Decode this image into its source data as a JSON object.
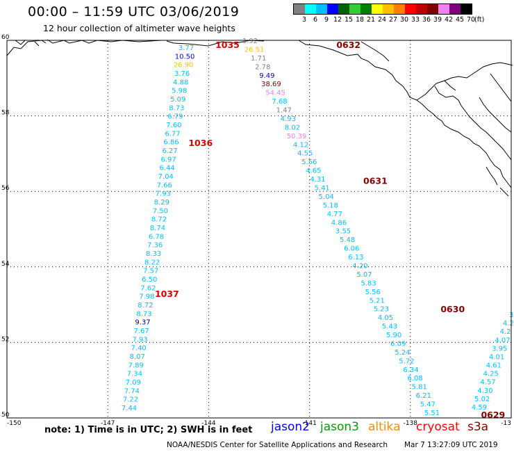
{
  "header": {
    "title": "00:00 – 11:59 UTC 03/06/2019",
    "subtitle": "12 hour collection of altimeter wave heights"
  },
  "legend": {
    "colors": [
      "#808080",
      "#00ffff",
      "#00bfff",
      "#0000ff",
      "#006400",
      "#32cd32",
      "#008000",
      "#ffff00",
      "#ffc000",
      "#ff8000",
      "#ff0000",
      "#c00000",
      "#800000",
      "#ee82ee",
      "#800080",
      "#000000"
    ],
    "labels": [
      "3",
      "6",
      "9",
      "12",
      "15",
      "18",
      "21",
      "24",
      "27",
      "30",
      "33",
      "36",
      "39",
      "42",
      "45",
      "70"
    ],
    "unit": "(ft)"
  },
  "axes": {
    "lat_labels": [
      "60",
      "58",
      "56",
      "54",
      "52",
      "50"
    ],
    "lon_labels": [
      "-150",
      "-147",
      "-144",
      "-141",
      "-138",
      "-13"
    ]
  },
  "passes": [
    {
      "id": "1035",
      "color": "#e00000",
      "lat": 59.8,
      "lon": -143.8
    },
    {
      "id": "1036",
      "color": "#e00000",
      "lat": 57.2,
      "lon": -144.6
    },
    {
      "id": "1037",
      "color": "#e00000",
      "lat": 53.2,
      "lon": -145.6
    },
    {
      "id": "0632",
      "color": "#8b0000",
      "lat": 59.8,
      "lon": -140.2
    },
    {
      "id": "0631",
      "color": "#8b0000",
      "lat": 56.2,
      "lon": -139.4
    },
    {
      "id": "0630",
      "color": "#8b0000",
      "lat": 52.8,
      "lon": -137.1
    },
    {
      "id": "0629",
      "color": "#8b0000",
      "lat": 50.0,
      "lon": -135.9
    }
  ],
  "tracks": [
    {
      "values": [
        "3.77",
        "10.50",
        "26.90",
        "3.76",
        "4.88",
        "5.98",
        "5.09",
        "8.73",
        "6.79",
        "7.60",
        "6.77",
        "6.86",
        "6.27",
        "6.97",
        "6.44",
        "7.04",
        "7.66",
        "7.93",
        "8.29",
        "7.50",
        "8.72",
        "8.74",
        "6.78",
        "7.36",
        "8.33",
        "8.22",
        "7.57",
        "6.50",
        "7.62",
        "7.98",
        "8.72",
        "8.73",
        "9.37",
        "7.67",
        "7.93",
        "7.40",
        "8.07",
        "7.89",
        "7.34",
        "7.09",
        "7.74",
        "7.22",
        "7.44"
      ],
      "colors": [
        "#00bfff",
        "#0000cd",
        "#ffc000",
        "#00bfff",
        "#00bfff",
        "#00bfff",
        "#00bfff",
        "#00bfff",
        "#00bfff",
        "#00bfff",
        "#00bfff",
        "#00bfff",
        "#00bfff",
        "#00bfff",
        "#00bfff",
        "#00bfff",
        "#00bfff",
        "#00bfff",
        "#00bfff",
        "#00bfff",
        "#00bfff",
        "#00bfff",
        "#00bfff",
        "#00bfff",
        "#00bfff",
        "#00bfff",
        "#00bfff",
        "#00bfff",
        "#00bfff",
        "#00bfff",
        "#00bfff",
        "#00bfff",
        "#000080",
        "#00bfff",
        "#00bfff",
        "#00bfff",
        "#00bfff",
        "#00bfff",
        "#00bfff",
        "#00bfff",
        "#00bfff",
        "#00bfff",
        "#00bfff"
      ],
      "start": {
        "x": 268,
        "y": 72
      },
      "end": {
        "x": 186,
        "y": 590
      }
    },
    {
      "values": [
        "1.92",
        "26.51",
        "1.71",
        "2.78",
        "9.49",
        "38.69",
        "54.45",
        "7.68",
        "1.47",
        "4.93",
        "8.02",
        "50.39",
        "4.12",
        "4.55",
        "5.56",
        "4.65",
        "4.31",
        "5.41",
        "5.04",
        "5.18",
        "4.77",
        "4.86",
        "3.55",
        "5.48",
        "6.06",
        "6.13",
        "4.20",
        "5.07",
        "5.83",
        "5.56",
        "5.21",
        "5.23",
        "4.05",
        "5.43",
        "5.90",
        "6.09",
        "5.24",
        "5.72",
        "6.34",
        "6.08",
        "5.81",
        "6.21",
        "5.47",
        "5.51"
      ],
      "colors": [
        "#808080",
        "#ffc000",
        "#808080",
        "#808080",
        "#0000cd",
        "#800000",
        "#ee82ee",
        "#00bfff",
        "#808080",
        "#00bfff",
        "#00bfff",
        "#ee82ee",
        "#00bfff",
        "#00bfff",
        "#00bfff",
        "#00bfff",
        "#00bfff",
        "#00bfff",
        "#00bfff",
        "#00bfff",
        "#00bfff",
        "#00bfff",
        "#00bfff",
        "#00bfff",
        "#00bfff",
        "#00bfff",
        "#00bfff",
        "#00bfff",
        "#00bfff",
        "#00bfff",
        "#00bfff",
        "#00bfff",
        "#00bfff",
        "#00bfff",
        "#00bfff",
        "#00bfff",
        "#00bfff",
        "#00bfff",
        "#00bfff",
        "#00bfff",
        "#00bfff",
        "#00bfff",
        "#00bfff",
        "#00bfff"
      ],
      "start": {
        "x": 360,
        "y": 62
      },
      "end": {
        "x": 622,
        "y": 597
      }
    },
    {
      "values": [
        "4.59",
        "5.02",
        "4.30",
        "4.57",
        "4.25",
        "4.61",
        "4.01",
        "3.95",
        "4.07",
        "4.2",
        "4.2",
        "3"
      ],
      "colors": [
        "#00bfff",
        "#00bfff",
        "#00bfff",
        "#00bfff",
        "#00bfff",
        "#00bfff",
        "#00bfff",
        "#00bfff",
        "#00bfff",
        "#00bfff",
        "#00bfff",
        "#00bfff"
      ],
      "start": {
        "x": 690,
        "y": 589
      },
      "end": {
        "x": 736,
        "y": 456
      }
    }
  ],
  "note": "note: 1) Time is in UTC; 2) SWH is in feet",
  "satellites": [
    {
      "name": "jason2",
      "color": "#0000ff"
    },
    {
      "name": "jason3",
      "color": "#00a000"
    },
    {
      "name": "altika",
      "color": "#ff8c00"
    },
    {
      "name": "cryosat",
      "color": "#ff0000"
    },
    {
      "name": "s3a",
      "color": "#8b0000"
    }
  ],
  "credit": "NOAA/NESDIS Center for Satellite Applications and Research",
  "timestamp": "Mar  7 13:27:09 UTC 2019"
}
